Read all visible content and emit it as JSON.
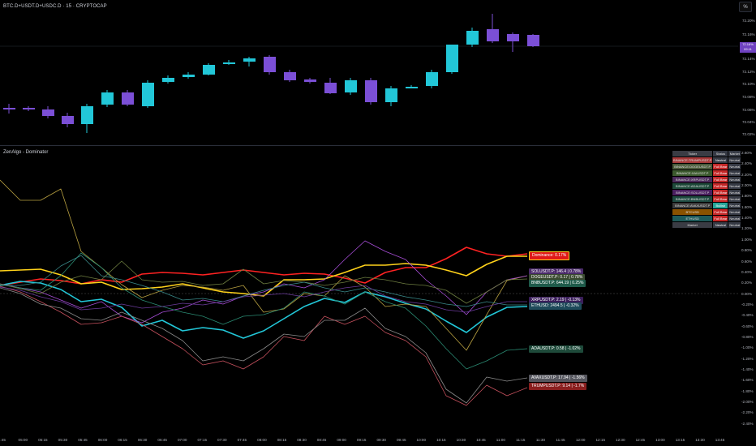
{
  "header": {
    "symbol_title": "BTC.D+USDT.D+USDC.D · 15 · CRYPTOCAP",
    "percent_button": "%"
  },
  "price_axis": {
    "labels": [
      "72.20%",
      "72.16%",
      "72.14%",
      "72.12%",
      "72.10%",
      "72.08%",
      "72.06%",
      "72.04%",
      "72.02%"
    ],
    "current_price": "72.16%",
    "current_countdown": "09:11"
  },
  "indicator": {
    "name": "ZenAlgo - Dominator",
    "axis_labels": [
      "2.60%",
      "2.40%",
      "2.20%",
      "2.00%",
      "1.80%",
      "1.60%",
      "1.40%",
      "1.20%",
      "1.00%",
      "0.80%",
      "0.60%",
      "0.40%",
      "0.20%",
      "0.00%",
      "-0.20%",
      "-0.40%",
      "-0.60%",
      "-0.80%",
      "-1.00%",
      "-1.20%",
      "-1.40%",
      "-1.60%",
      "-1.80%",
      "-2.00%",
      "-2.20%",
      "-2.40%"
    ],
    "table": {
      "headers": [
        "Ticker",
        "Status",
        "Market"
      ],
      "rows": [
        {
          "ticker": "BINANCE:TRUMPUSDT.P",
          "status": "Neutral",
          "market": "Neutral",
          "color": "#a63a3a"
        },
        {
          "ticker": "BINANCE:DOGEUSDT.P",
          "status": "Full Bear",
          "market": "Neutral",
          "color": "#4a5a3a"
        },
        {
          "ticker": "BINANCE:XAIUSDT.P",
          "status": "Full Bear",
          "market": "Neutral",
          "color": "#3c5a2e"
        },
        {
          "ticker": "BINANCE:XRPUSDT.P",
          "status": "Full Bear",
          "market": "Neutral",
          "color": "#4a2a5a"
        },
        {
          "ticker": "BINANCE:ADAUSDT.P",
          "status": "Full Bear",
          "market": "Neutral",
          "color": "#1e4a3a"
        },
        {
          "ticker": "BINANCE:SOLUSDT.P",
          "status": "Full Bear",
          "market": "Neutral",
          "color": "#4a2060"
        },
        {
          "ticker": "BINANCE:BNBUSDT.P",
          "status": "Full Bear",
          "market": "Neutral",
          "color": "#1e4a40"
        },
        {
          "ticker": "BINANCE:AVAXUSDT.P",
          "status": "Bullish",
          "market": "Neutral",
          "color": "#3a3a3a"
        },
        {
          "ticker": "BTCUSD",
          "status": "Full Bear",
          "market": "Neutral",
          "color": "#8a5200"
        },
        {
          "ticker": "ETHUSD",
          "status": "Full Bear",
          "market": "Neutral",
          "color": "#1e5a5a"
        },
        {
          "ticker": "Market",
          "status": "Neutral",
          "market": "Neutral",
          "color": "#3a3c44"
        }
      ]
    },
    "tags": [
      {
        "label": "Dominance: 0.17%",
        "bg": "#e01818"
      },
      {
        "label": "SOLUSDT.P: 146.4 | 0.78%",
        "bg": "#4a2a6a"
      },
      {
        "label": "DOGEUSDT.P: 0.17 | 0.78%",
        "bg": "#3a4a30"
      },
      {
        "label": "BNBUSDT.P: 644.19 | 0.25%",
        "bg": "#1e5a4a"
      },
      {
        "label": "XRPUSDT.P: 2.19 | -0.13%",
        "bg": "#3a1e5a"
      },
      {
        "label": "ETHUSD: 2494.5 | -0.32%",
        "bg": "#1e4a5a"
      },
      {
        "label": "ADAUSDT.P: 0.58 | -1.02%",
        "bg": "#1e4a3a"
      },
      {
        "label": "AVAXUSDT.P: 17.94 | -1.56%",
        "bg": "#55565e"
      },
      {
        "label": "TRUMPUSDT.P: 9.14 | -1.7%",
        "bg": "#8a1e1e"
      }
    ],
    "status_colors": {
      "Full Bear": "#c62828",
      "Neutral": "#363a45",
      "Bullish": "#26a69a"
    }
  },
  "time_axis": [
    "4:45",
    "05:00",
    "05:15",
    "05:30",
    "05:45",
    "06:00",
    "06:15",
    "06:30",
    "06:45",
    "07:00",
    "07:15",
    "07:30",
    "07:45",
    "08:00",
    "08:15",
    "08:30",
    "08:45",
    "09:00",
    "09:15",
    "09:30",
    "09:45",
    "10:00",
    "10:15",
    "10:30",
    "10:45",
    "11:00",
    "11:15",
    "11:30",
    "11:45",
    "12:00",
    "12:15",
    "12:30",
    "12:45",
    "13:00",
    "13:15",
    "13:30",
    "13:45"
  ],
  "colors": {
    "bull": "#22c7d8",
    "bear": "#7b4fd6"
  }
}
